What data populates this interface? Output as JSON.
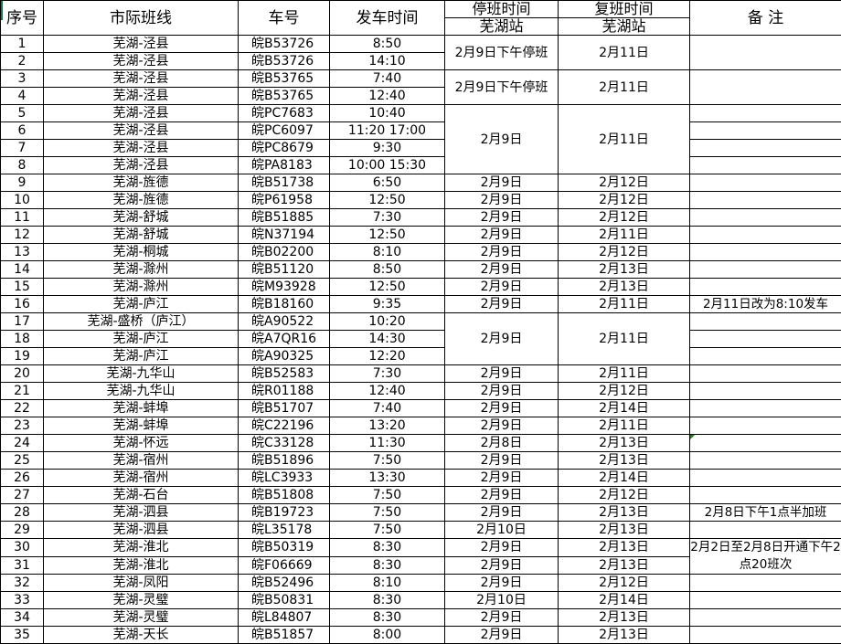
{
  "headers": {
    "no": "序号",
    "route": "市际班线",
    "plate": "车号",
    "time": "发车时间",
    "stop": "停班时间",
    "stop_sub": "芜湖站",
    "resume": "复班时间",
    "resume_sub": "芜湖站",
    "remark": "备 注"
  },
  "rows": [
    {
      "no": "1",
      "route": "芜湖-泾县",
      "plate": "皖B53726",
      "time": "8:50",
      "stop": "2月9日下午停班",
      "resume": "2月11日",
      "span": 2,
      "remark": "",
      "rspan": 2
    },
    {
      "no": "2",
      "route": "芜湖-泾县",
      "plate": "皖B53726",
      "time": "14:10"
    },
    {
      "no": "3",
      "route": "芜湖-泾县",
      "plate": "皖B53765",
      "time": "7:40",
      "stop": "2月9日下午停班",
      "resume": "2月11日",
      "span": 2,
      "remark": "",
      "rspan": 2
    },
    {
      "no": "4",
      "route": "芜湖-泾县",
      "plate": "皖B53765",
      "time": "12:40"
    },
    {
      "no": "5",
      "route": "芜湖-泾县",
      "plate": "皖PC7683",
      "time": "10:40",
      "stop": "2月9日",
      "resume": "2月11日",
      "span": 4,
      "remark": ""
    },
    {
      "no": "6",
      "route": "芜湖-泾县",
      "plate": "皖PC6097",
      "time": "11:20 17:00",
      "remark": ""
    },
    {
      "no": "7",
      "route": "芜湖-泾县",
      "plate": "皖PC8679",
      "time": "9:30",
      "remark": ""
    },
    {
      "no": "8",
      "route": "芜湖-泾县",
      "plate": "皖PA8183",
      "time": "10:00 15:30",
      "remark": ""
    },
    {
      "no": "9",
      "route": "芜湖-旌德",
      "plate": "皖B51738",
      "time": "6:50",
      "stop": "2月9日",
      "resume": "2月12日",
      "remark": ""
    },
    {
      "no": "10",
      "route": "芜湖-旌德",
      "plate": "皖P61958",
      "time": "12:50",
      "stop": "2月9日",
      "resume": "2月12日",
      "remark": ""
    },
    {
      "no": "11",
      "route": "芜湖-舒城",
      "plate": "皖B51885",
      "time": "7:30",
      "stop": "2月9日",
      "resume": "2月12日",
      "remark": ""
    },
    {
      "no": "12",
      "route": "芜湖-舒城",
      "plate": "皖N37194",
      "time": "12:50",
      "stop": "2月9日",
      "resume": "2月11日",
      "remark": ""
    },
    {
      "no": "13",
      "route": "芜湖-桐城",
      "plate": "皖B02200",
      "time": "8:10",
      "stop": "2月9日",
      "resume": "2月12日",
      "remark": ""
    },
    {
      "no": "14",
      "route": "芜湖-滁州",
      "plate": "皖B51120",
      "time": "8:50",
      "stop": "2月9日",
      "resume": "2月13日",
      "remark": ""
    },
    {
      "no": "15",
      "route": "芜湖-滁州",
      "plate": "皖M93928",
      "time": "12:50",
      "stop": "2月9日",
      "resume": "2月13日",
      "remark": ""
    },
    {
      "no": "16",
      "route": "芜湖-庐江",
      "plate": "皖B18160",
      "time": "9:35",
      "stop": "2月9日",
      "resume": "2月11日",
      "remark": "2月11日改为8:10发车"
    },
    {
      "no": "17",
      "route": "芜湖-盛桥（庐江）",
      "plate": "皖A90522",
      "time": "10:20",
      "stop": "2月9日",
      "resume": "2月11日",
      "span": 3,
      "remark": ""
    },
    {
      "no": "18",
      "route": "芜湖-庐江",
      "plate": "皖A7QR16",
      "time": "14:30",
      "remark": ""
    },
    {
      "no": "19",
      "route": "芜湖-庐江",
      "plate": "皖A90325",
      "time": "12:20",
      "remark": ""
    },
    {
      "no": "20",
      "route": "芜湖-九华山",
      "plate": "皖B52583",
      "time": "7:30",
      "stop": "2月9日",
      "resume": "2月11日",
      "remark": ""
    },
    {
      "no": "21",
      "route": "芜湖-九华山",
      "plate": "皖R01188",
      "time": "12:40",
      "stop": "2月9日",
      "resume": "2月12日",
      "remark": ""
    },
    {
      "no": "22",
      "route": "芜湖-蚌埠",
      "plate": "皖B51707",
      "time": "7:40",
      "stop": "2月9日",
      "resume": "2月14日",
      "remark": ""
    },
    {
      "no": "23",
      "route": "芜湖-蚌埠",
      "plate": "皖C22196",
      "time": "13:20",
      "stop": "2月9日",
      "resume": "2月11日",
      "remark": ""
    },
    {
      "no": "24",
      "route": "芜湖-怀远",
      "plate": "皖C33128",
      "time": "11:30",
      "stop": "2月8日",
      "resume": "2月13日",
      "remark": "",
      "flag": true
    },
    {
      "no": "25",
      "route": "芜湖-宿州",
      "plate": "皖B51896",
      "time": "7:50",
      "stop": "2月9日",
      "resume": "2月13日",
      "remark": ""
    },
    {
      "no": "26",
      "route": "芜湖-宿州",
      "plate": "皖LC3933",
      "time": "13:30",
      "stop": "2月9日",
      "resume": "2月14日",
      "remark": ""
    },
    {
      "no": "27",
      "route": "芜湖-石台",
      "plate": "皖B51808",
      "time": "7:50",
      "stop": "2月9日",
      "resume": "2月12日",
      "remark": ""
    },
    {
      "no": "28",
      "route": "芜湖-泗县",
      "plate": "皖B19723",
      "time": "7:50",
      "stop": "2月9日",
      "resume": "2月13日",
      "remark": "2月8日下午1点半加班"
    },
    {
      "no": "29",
      "route": "芜湖-泗县",
      "plate": "皖L35178",
      "time": "7:50",
      "stop": "2月10日",
      "resume": "2月13日",
      "remark": ""
    },
    {
      "no": "30",
      "route": "芜湖-淮北",
      "plate": "皖B50319",
      "time": "8:30",
      "stop": "2月9日",
      "resume": "2月13日",
      "remark": "2月2日至2月8日开通下午2点20班次",
      "rspan": 2
    },
    {
      "no": "31",
      "route": "芜湖-淮北",
      "plate": "皖F06669",
      "time": "8:30",
      "stop": "2月9日",
      "resume": "2月13日"
    },
    {
      "no": "32",
      "route": "芜湖-凤阳",
      "plate": "皖B52496",
      "time": "8:10",
      "stop": "2月9日",
      "resume": "2月12日",
      "remark": ""
    },
    {
      "no": "33",
      "route": "芜湖-灵璧",
      "plate": "皖B50831",
      "time": "8:30",
      "stop": "2月10日",
      "resume": "2月14日",
      "remark": ""
    },
    {
      "no": "34",
      "route": "芜湖-灵璧",
      "plate": "皖L84807",
      "time": "8:30",
      "stop": "2月9日",
      "resume": "2月13日",
      "remark": ""
    },
    {
      "no": "35",
      "route": "芜湖-天长",
      "plate": "皖B51857",
      "time": "8:00",
      "stop": "2月9日",
      "resume": "2月13日",
      "remark": ""
    }
  ]
}
